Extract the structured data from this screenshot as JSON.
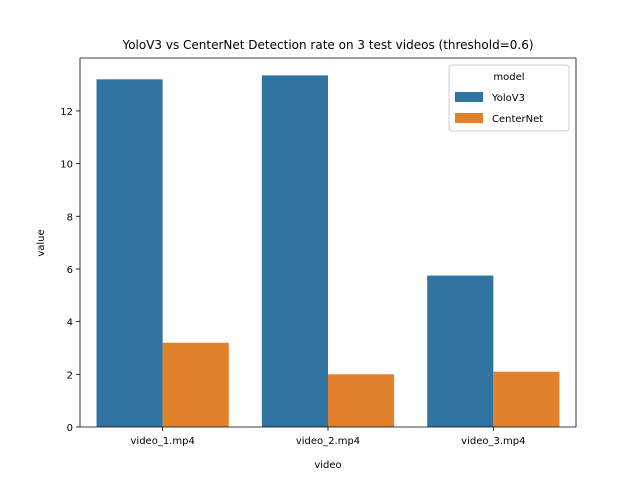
{
  "chart_data": {
    "type": "bar",
    "title": "YoloV3 vs CenterNet Detection rate on 3 test videos (threshold=0.6)",
    "xlabel": "video",
    "ylabel": "value",
    "categories": [
      "video_1.mp4",
      "video_2.mp4",
      "video_3.mp4"
    ],
    "series": [
      {
        "name": "YoloV3",
        "values": [
          13.2,
          13.35,
          5.75
        ],
        "color": "#3274a1"
      },
      {
        "name": "CenterNet",
        "values": [
          3.2,
          2.0,
          2.1
        ],
        "color": "#e1812c"
      }
    ],
    "ylim": [
      0,
      14.01
    ],
    "yticks": [
      0,
      2,
      4,
      6,
      8,
      10,
      12
    ],
    "legend": {
      "title": "model",
      "placement": "top-right"
    },
    "grid": false
  }
}
